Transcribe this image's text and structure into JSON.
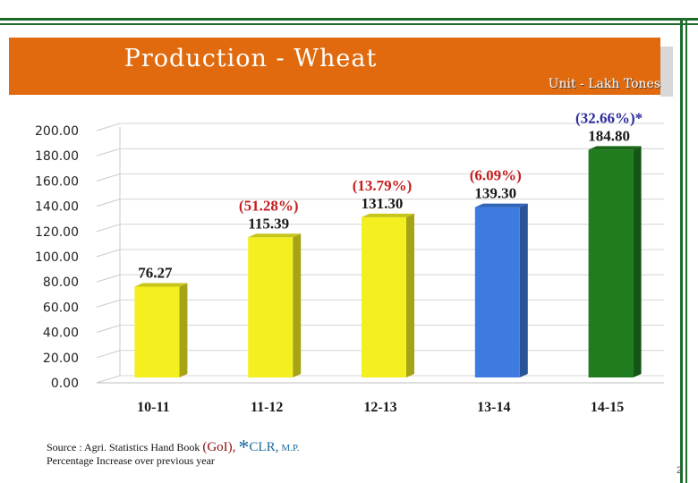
{
  "slide": {
    "title": "Production - Wheat",
    "unit": "Unit - Lakh Tones",
    "source_prefix": "Source : Agri. Statistics Hand Book",
    "source_goi": "(GoI),",
    "source_star": "*",
    "source_clr": "CLR,",
    "source_mp": "M.P.",
    "note": "Percentage Increase over previous year",
    "page_number": "2"
  },
  "chart_data": {
    "type": "bar",
    "title": "Production - Wheat",
    "xlabel": "",
    "ylabel": "",
    "categories": [
      "10-11",
      "11-12",
      "12-13",
      "13-14",
      "14-15"
    ],
    "values": [
      76.27,
      115.39,
      131.3,
      139.3,
      184.8
    ],
    "value_labels": [
      "76.27",
      "115.39",
      "131.30",
      "139.30",
      "184.80"
    ],
    "pct_labels": [
      "",
      "(51.28%)",
      "(13.79%)",
      "(6.09%)",
      "(32.66%)*"
    ],
    "bar_colors": [
      "#f4f020",
      "#f4f020",
      "#f4f020",
      "#3d7be0",
      "#1f7d1f"
    ],
    "pct_colors": [
      "#c41e1e",
      "#c41e1e",
      "#c41e1e",
      "#c41e1e",
      "#2a2a9e"
    ],
    "yticks": [
      "0.00",
      "20.00",
      "40.00",
      "60.00",
      "80.00",
      "100.00",
      "120.00",
      "140.00",
      "160.00",
      "180.00",
      "200.00"
    ],
    "ylim": [
      0,
      200
    ],
    "grid": true
  }
}
